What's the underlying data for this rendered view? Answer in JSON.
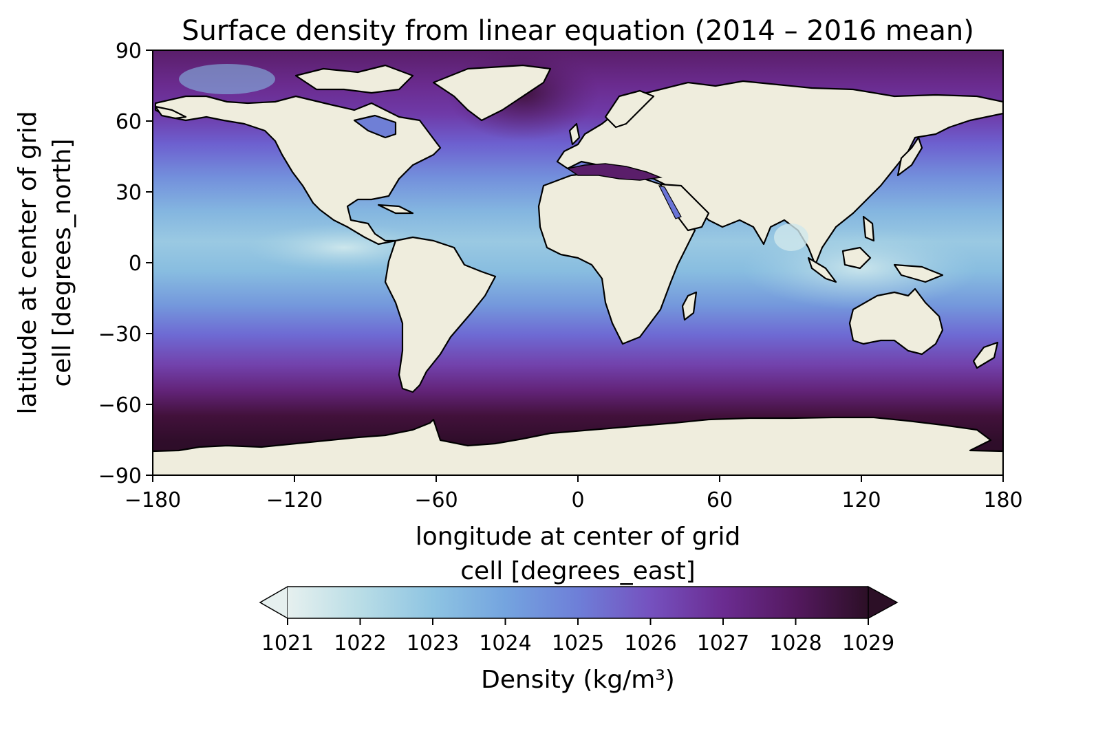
{
  "title": "Surface density from linear equation (2014 – 2016 mean)",
  "xaxis": {
    "label_line1": "longitude at center of grid",
    "label_line2": "cell [degrees_east]",
    "range": [
      -180,
      180
    ],
    "ticks": [
      -180,
      -120,
      -60,
      0,
      60,
      120,
      180
    ],
    "tick_labels": [
      "−180",
      "−120",
      "−60",
      "0",
      "60",
      "120",
      "180"
    ]
  },
  "yaxis": {
    "label_line1": "latitude at center of grid",
    "label_line2": "cell [degrees_north]",
    "range": [
      -90,
      90
    ],
    "ticks": [
      90,
      60,
      30,
      0,
      -30,
      -60,
      -90
    ],
    "tick_labels": [
      "90",
      "60",
      "30",
      "0",
      "−30",
      "−60",
      "−90"
    ]
  },
  "colorbar": {
    "label": "Density (kg/m³)",
    "range": [
      1021,
      1029
    ],
    "ticks": [
      1021,
      1022,
      1023,
      1024,
      1025,
      1026,
      1027,
      1028,
      1029
    ],
    "tick_labels": [
      "1021",
      "1022",
      "1023",
      "1024",
      "1025",
      "1026",
      "1027",
      "1028",
      "1029"
    ],
    "extend": "both",
    "colormap": [
      "#e6f0ef",
      "#b9dde6",
      "#8ec4e2",
      "#74a4df",
      "#6e7fd8",
      "#7551bf",
      "#6b2c91",
      "#54195f",
      "#2c0f26"
    ]
  },
  "colors": {
    "land": "#efeddd",
    "coast": "#000000"
  }
}
